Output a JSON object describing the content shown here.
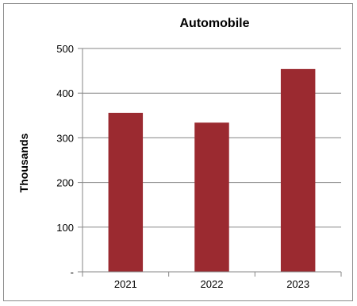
{
  "chart_data": {
    "type": "bar",
    "title": "Automobile",
    "xlabel": "",
    "ylabel": "Thousands",
    "categories": [
      "2021",
      "2022",
      "2023"
    ],
    "values": [
      356,
      334,
      454
    ],
    "ylim": [
      0,
      500
    ],
    "yticks": [
      0,
      100,
      200,
      300,
      400,
      500
    ],
    "ytick_labels": [
      "-",
      "100",
      "200",
      "300",
      "400",
      "500"
    ],
    "grid": true,
    "legend": "none",
    "bar_color": "#9b2a30",
    "grid_color": "#868686"
  }
}
